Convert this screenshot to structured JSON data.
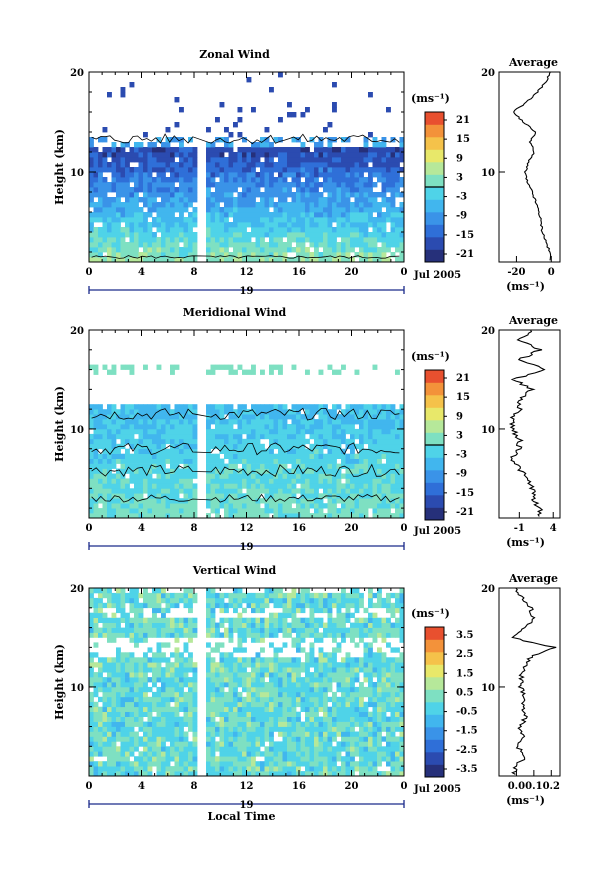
{
  "chart_data": [
    {
      "type": "heatmap",
      "title": "Zonal Wind",
      "ylabel": "Height (km)",
      "xticks": [
        "0",
        "4",
        "8",
        "12",
        "16",
        "20",
        "0"
      ],
      "yticks": [
        "10",
        "20"
      ],
      "ylim": [
        1,
        20
      ],
      "xlim": [
        0,
        24
      ],
      "day_label": "19",
      "date_label": "Jul 2005",
      "colorbar_unit": "(ms⁻¹)",
      "colorbar_ticks": [
        "21",
        "15",
        "9",
        "3",
        "-3",
        "-9",
        "-15",
        "-21"
      ],
      "colorbar_range": [
        -24,
        24
      ],
      "contour_zero": true,
      "profile_data_km": [
        [
          20,
          -1
        ],
        [
          19,
          -3
        ],
        [
          18,
          -8
        ],
        [
          17,
          -14
        ],
        [
          16,
          -22
        ],
        [
          15,
          -16
        ],
        [
          14,
          -9
        ],
        [
          13,
          -12
        ],
        [
          12,
          -10
        ],
        [
          11,
          -13
        ],
        [
          10,
          -15
        ],
        [
          9,
          -14
        ],
        [
          8,
          -11
        ],
        [
          7,
          -9
        ],
        [
          6,
          -7
        ],
        [
          5,
          -6
        ],
        [
          4,
          -5
        ],
        [
          3,
          -3
        ],
        [
          2,
          -1
        ],
        [
          1,
          0
        ]
      ],
      "profile": {
        "title": "Average",
        "xticks": [
          "-20",
          "0"
        ],
        "xlim": [
          -30,
          5
        ],
        "xlabel": "(ms⁻¹)",
        "yticks": [
          "10",
          "20"
        ]
      }
    },
    {
      "type": "heatmap",
      "title": "Meridional Wind",
      "ylabel": "Height (km)",
      "xticks": [
        "0",
        "4",
        "8",
        "12",
        "16",
        "20",
        "0"
      ],
      "yticks": [
        "10",
        "20"
      ],
      "ylim": [
        1,
        20
      ],
      "xlim": [
        0,
        24
      ],
      "day_label": "19",
      "date_label": "Jul 2005",
      "colorbar_unit": "(ms⁻¹)",
      "colorbar_ticks": [
        "21",
        "15",
        "9",
        "3",
        "-3",
        "-9",
        "-15",
        "-21"
      ],
      "colorbar_range": [
        -24,
        24
      ],
      "contour_zero": true,
      "profile_data_km": [
        [
          20,
          1
        ],
        [
          19,
          -1
        ],
        [
          18,
          2
        ],
        [
          17,
          -1
        ],
        [
          16,
          3
        ],
        [
          15,
          -2
        ],
        [
          14,
          1
        ],
        [
          13,
          -1
        ],
        [
          12,
          -1
        ],
        [
          11,
          -2
        ],
        [
          10,
          -2
        ],
        [
          9,
          -1
        ],
        [
          8,
          -1
        ],
        [
          7,
          -2
        ],
        [
          6,
          -1
        ],
        [
          5,
          0
        ],
        [
          4,
          1
        ],
        [
          3,
          1
        ],
        [
          2,
          2
        ],
        [
          1,
          2
        ]
      ],
      "profile": {
        "title": "Average",
        "xticks": [
          "-1",
          "4"
        ],
        "xlim": [
          -4,
          5
        ],
        "xlabel": "(ms⁻¹)",
        "yticks": [
          "10",
          "20"
        ]
      }
    },
    {
      "type": "heatmap",
      "title": "Vertical Wind",
      "ylabel": "Height (km)",
      "xlabel": "Local Time",
      "xticks": [
        "0",
        "4",
        "8",
        "12",
        "16",
        "20",
        "0"
      ],
      "yticks": [
        "10",
        "20"
      ],
      "ylim": [
        1,
        20
      ],
      "xlim": [
        0,
        24
      ],
      "day_label": "19",
      "date_label": "Jul 2005",
      "colorbar_unit": "(ms⁻¹)",
      "colorbar_ticks": [
        "3.5",
        "2.5",
        "1.5",
        "0.5",
        "-0.5",
        "-1.5",
        "-2.5",
        "-3.5"
      ],
      "colorbar_range": [
        -4,
        4
      ],
      "contour_zero": false,
      "profile_data_km": [
        [
          20,
          0.0
        ],
        [
          19,
          0.03
        ],
        [
          18,
          0.08
        ],
        [
          17,
          0.1
        ],
        [
          16,
          0.05
        ],
        [
          15,
          -0.03
        ],
        [
          14,
          0.22
        ],
        [
          13,
          0.08
        ],
        [
          12,
          0.04
        ],
        [
          11,
          0.03
        ],
        [
          10,
          0.02
        ],
        [
          9,
          0.05
        ],
        [
          8,
          0.03
        ],
        [
          7,
          0.06
        ],
        [
          6,
          0.02
        ],
        [
          5,
          0.04
        ],
        [
          4,
          0.0
        ],
        [
          3,
          0.05
        ],
        [
          2,
          0.0
        ],
        [
          1,
          -0.02
        ]
      ],
      "profile": {
        "title": "Average",
        "xticks": [
          "0.0",
          "0.1",
          "0.2"
        ],
        "xlim": [
          -0.1,
          0.25
        ],
        "xlabel": "(ms⁻¹)",
        "yticks": [
          "10",
          "20"
        ]
      }
    }
  ]
}
